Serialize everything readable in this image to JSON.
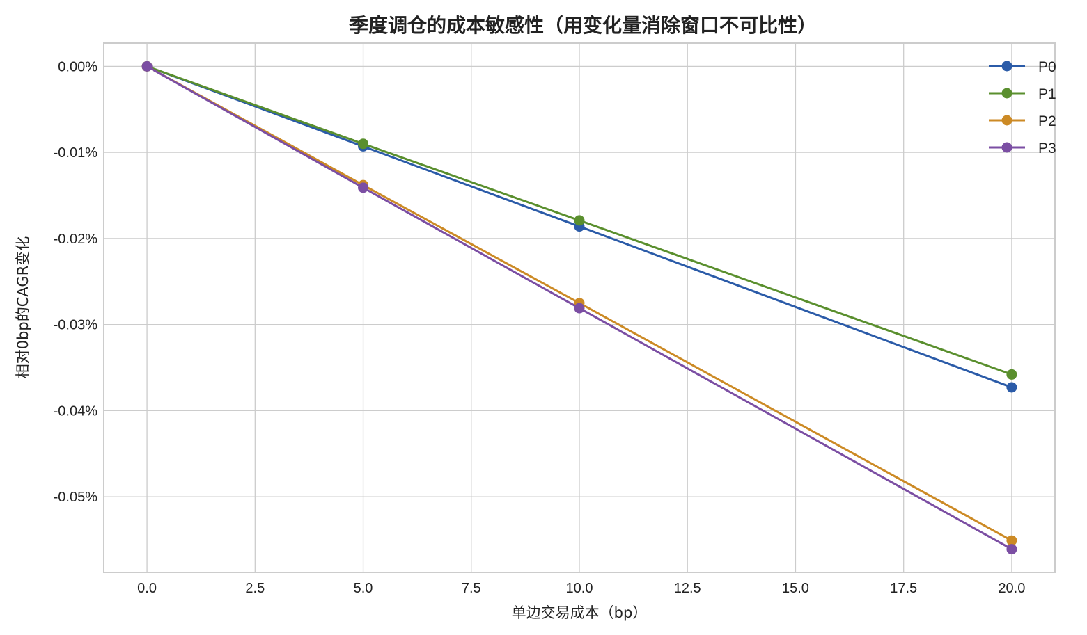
{
  "chart_data": {
    "type": "line",
    "title": "季度调仓的成本敏感性（用变化量消除窗口不可比性）",
    "xlabel": "单边交易成本（bp）",
    "ylabel": "相对0bp的CAGR变化",
    "x": [
      0,
      5,
      10,
      20
    ],
    "xlim": [
      -1,
      21
    ],
    "ylim": [
      -0.0588,
      0.0027
    ],
    "x_ticks": [
      0,
      2.5,
      5,
      7.5,
      10,
      12.5,
      15,
      17.5,
      20
    ],
    "x_tick_labels": [
      "0.0",
      "2.5",
      "5.0",
      "7.5",
      "10.0",
      "12.5",
      "15.0",
      "17.5",
      "20.0"
    ],
    "y_ticks": [
      0,
      -0.01,
      -0.02,
      -0.03,
      -0.04,
      -0.05
    ],
    "y_tick_labels": [
      "0.00%",
      "-0.01%",
      "-0.02%",
      "-0.03%",
      "-0.04%",
      "-0.05%"
    ],
    "grid": true,
    "legend_position": "top-right",
    "series": [
      {
        "name": "P0",
        "color": "#2b5ba8",
        "values": [
          0,
          -0.0093,
          -0.0186,
          -0.0373
        ]
      },
      {
        "name": "P1",
        "color": "#5a8f2e",
        "values": [
          0,
          -0.009,
          -0.0179,
          -0.0358
        ]
      },
      {
        "name": "P2",
        "color": "#cc8a25",
        "values": [
          0,
          -0.0138,
          -0.0275,
          -0.0551
        ]
      },
      {
        "name": "P3",
        "color": "#7b4ea3",
        "values": [
          0,
          -0.0141,
          -0.0281,
          -0.0561
        ]
      }
    ]
  }
}
